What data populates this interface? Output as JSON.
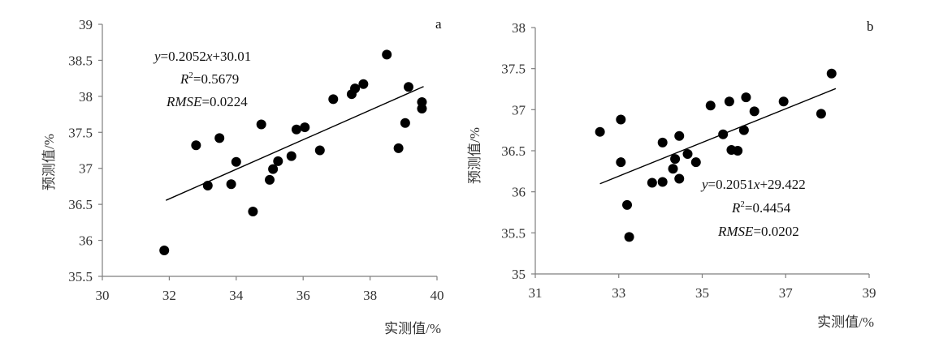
{
  "chart_data": [
    {
      "type": "scatter",
      "panel_label": "a",
      "xlabel": "实测值/%",
      "ylabel": "预测值/%",
      "xlim": [
        30,
        40
      ],
      "ylim": [
        35.5,
        39
      ],
      "xticks": [
        "30",
        "32",
        "34",
        "36",
        "38",
        "40"
      ],
      "yticks": [
        "35.5",
        "36",
        "36.5",
        "37",
        "37.5",
        "38",
        "38.5",
        "39"
      ],
      "grid": false,
      "fit": {
        "slope": 0.2052,
        "intercept": 30.01,
        "x_range": [
          31.9,
          39.6
        ]
      },
      "annotations": {
        "equation": {
          "y": "y",
          "rest": "=0.2052",
          "x": "x",
          "tail": "+30.01"
        },
        "r2": {
          "r": "R",
          "sup": "2",
          "value": "=0.5679"
        },
        "rmse": {
          "label": "RMSE",
          "value": "=0.0224"
        }
      },
      "points": [
        {
          "x": 31.85,
          "y": 35.86
        },
        {
          "x": 32.8,
          "y": 37.32
        },
        {
          "x": 33.15,
          "y": 36.76
        },
        {
          "x": 33.5,
          "y": 37.42
        },
        {
          "x": 33.85,
          "y": 36.78
        },
        {
          "x": 34.0,
          "y": 37.09
        },
        {
          "x": 34.5,
          "y": 36.4
        },
        {
          "x": 34.75,
          "y": 37.61
        },
        {
          "x": 35.0,
          "y": 36.84
        },
        {
          "x": 35.1,
          "y": 36.99
        },
        {
          "x": 35.25,
          "y": 37.1
        },
        {
          "x": 35.65,
          "y": 37.17
        },
        {
          "x": 35.8,
          "y": 37.54
        },
        {
          "x": 36.05,
          "y": 37.57
        },
        {
          "x": 36.5,
          "y": 37.25
        },
        {
          "x": 36.9,
          "y": 37.96
        },
        {
          "x": 37.45,
          "y": 38.03
        },
        {
          "x": 37.55,
          "y": 38.11
        },
        {
          "x": 37.8,
          "y": 38.17
        },
        {
          "x": 38.5,
          "y": 38.58
        },
        {
          "x": 38.85,
          "y": 37.28
        },
        {
          "x": 39.05,
          "y": 37.63
        },
        {
          "x": 39.15,
          "y": 38.13
        },
        {
          "x": 39.55,
          "y": 37.92
        },
        {
          "x": 39.55,
          "y": 37.83
        }
      ]
    },
    {
      "type": "scatter",
      "panel_label": "b",
      "xlabel": "实测值/%",
      "ylabel": "预测值/%",
      "xlim": [
        31,
        39
      ],
      "ylim": [
        35,
        38
      ],
      "xticks": [
        "31",
        "33",
        "35",
        "37",
        "39"
      ],
      "yticks": [
        "35",
        "35.5",
        "36",
        "36.5",
        "37",
        "37.5",
        "38"
      ],
      "grid": false,
      "fit": {
        "slope": 0.2051,
        "intercept": 29.422,
        "x_range": [
          32.55,
          38.2
        ]
      },
      "annotations": {
        "equation": {
          "y": "y",
          "rest": "=0.2051",
          "x": "x",
          "tail": "+29.422"
        },
        "r2": {
          "r": "R",
          "sup": "2",
          "value": "=0.4454"
        },
        "rmse": {
          "label": "RMSE",
          "value": "=0.0202"
        }
      },
      "points": [
        {
          "x": 32.55,
          "y": 36.73
        },
        {
          "x": 33.05,
          "y": 36.88
        },
        {
          "x": 33.05,
          "y": 36.36
        },
        {
          "x": 33.2,
          "y": 35.84
        },
        {
          "x": 33.25,
          "y": 35.45
        },
        {
          "x": 33.8,
          "y": 36.11
        },
        {
          "x": 34.05,
          "y": 36.6
        },
        {
          "x": 34.05,
          "y": 36.12
        },
        {
          "x": 34.3,
          "y": 36.28
        },
        {
          "x": 34.35,
          "y": 36.4
        },
        {
          "x": 34.45,
          "y": 36.68
        },
        {
          "x": 34.45,
          "y": 36.16
        },
        {
          "x": 34.65,
          "y": 36.46
        },
        {
          "x": 34.85,
          "y": 36.36
        },
        {
          "x": 35.2,
          "y": 37.05
        },
        {
          "x": 35.5,
          "y": 36.7
        },
        {
          "x": 35.65,
          "y": 37.1
        },
        {
          "x": 35.7,
          "y": 36.51
        },
        {
          "x": 35.85,
          "y": 36.5
        },
        {
          "x": 36.0,
          "y": 36.75
        },
        {
          "x": 36.05,
          "y": 37.15
        },
        {
          "x": 36.25,
          "y": 36.98
        },
        {
          "x": 36.95,
          "y": 37.1
        },
        {
          "x": 37.85,
          "y": 36.95
        },
        {
          "x": 38.1,
          "y": 37.44
        }
      ]
    }
  ]
}
